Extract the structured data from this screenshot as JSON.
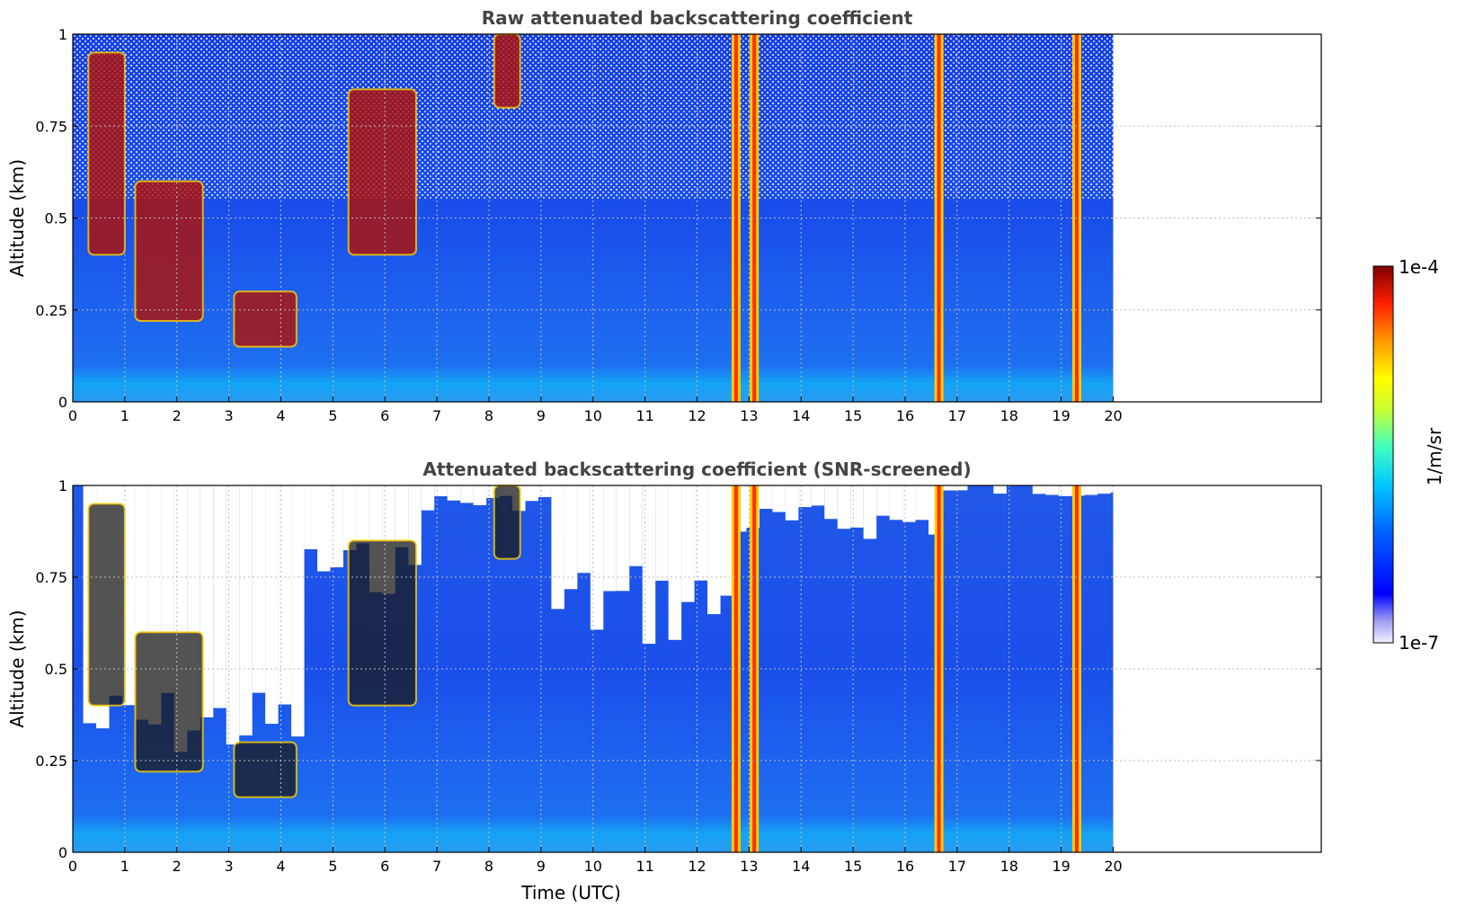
{
  "chart_data": [
    {
      "type": "heatmap",
      "title": "Raw attenuated backscattering coefficient",
      "xlabel": "",
      "ylabel": "Altitude (km)",
      "xlim": [
        0,
        24
      ],
      "ylim": [
        0,
        1
      ],
      "x_ticks": [
        0,
        1,
        2,
        3,
        4,
        5,
        6,
        7,
        8,
        9,
        10,
        11,
        12,
        13,
        14,
        15,
        16,
        17,
        18,
        19,
        20
      ],
      "y_ticks": [
        "0",
        "0.25",
        "0.5",
        "0.75",
        "1"
      ],
      "data_extent_x": [
        0,
        20
      ],
      "grid": true,
      "screened": false,
      "bright_columns_x": [
        12.75,
        13.1,
        16.65,
        19.3
      ],
      "cloud_layers": [
        {
          "x": [
            0.3,
            1.0
          ],
          "y": [
            0.4,
            0.95
          ]
        },
        {
          "x": [
            1.2,
            2.5
          ],
          "y": [
            0.22,
            0.6
          ]
        },
        {
          "x": [
            3.1,
            4.3
          ],
          "y": [
            0.15,
            0.3
          ]
        },
        {
          "x": [
            5.3,
            6.6
          ],
          "y": [
            0.4,
            0.85
          ]
        },
        {
          "x": [
            8.1,
            8.6
          ],
          "y": [
            0.8,
            1.0
          ]
        }
      ]
    },
    {
      "type": "heatmap",
      "title": "Attenuated backscattering coefficient (SNR-screened)",
      "xlabel": "Time (UTC)",
      "ylabel": "Altitude (km)",
      "xlim": [
        0,
        24
      ],
      "ylim": [
        0,
        1
      ],
      "x_ticks": [
        0,
        1,
        2,
        3,
        4,
        5,
        6,
        7,
        8,
        9,
        10,
        11,
        12,
        13,
        14,
        15,
        16,
        17,
        18,
        19,
        20
      ],
      "y_ticks": [
        "0",
        "0.25",
        "0.5",
        "0.75",
        "1"
      ],
      "data_extent_x": [
        0,
        20
      ],
      "grid": true,
      "screened": true,
      "bright_columns_x": [
        12.75,
        13.1,
        16.65,
        19.3
      ],
      "cloud_layers": [
        {
          "x": [
            0.3,
            1.0
          ],
          "y": [
            0.4,
            0.95
          ]
        },
        {
          "x": [
            1.2,
            2.5
          ],
          "y": [
            0.22,
            0.6
          ]
        },
        {
          "x": [
            3.1,
            4.3
          ],
          "y": [
            0.15,
            0.3
          ]
        },
        {
          "x": [
            5.3,
            6.6
          ],
          "y": [
            0.4,
            0.85
          ]
        },
        {
          "x": [
            8.1,
            8.6
          ],
          "y": [
            0.8,
            1.0
          ]
        }
      ]
    }
  ],
  "colorbar": {
    "label": "1/m/sr",
    "max_label": "1e-4",
    "min_label": "1e-7",
    "scale": "log",
    "range": [
      1e-07,
      0.0001
    ],
    "colormap": "jet"
  }
}
